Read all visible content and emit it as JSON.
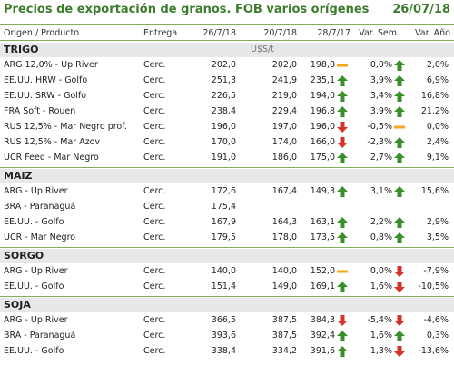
{
  "title": "Precios de exportación de granos. FOB varios orígenes",
  "date": "26/07/18",
  "headers": {
    "producto": "Origen / Producto",
    "entrega": "Entrega",
    "d1": "26/7/18",
    "d2": "20/7/18",
    "d3": "28/7/17",
    "var_sem": "Var. Sem.",
    "var_anio": "Var. Año"
  },
  "unit": "U$S/t",
  "colors": {
    "up": "#3a8f2a",
    "down": "#d6332a",
    "flat": "#f2a81d",
    "accent": "#3b7d2a"
  },
  "sections": [
    {
      "name": "TRIGO",
      "rows": [
        {
          "p": "ARG 12,0% - Up River",
          "e": "Cerc.",
          "d1": "202,0",
          "d2": "202,0",
          "d3": "198,0",
          "i1": "flat",
          "vs": "0,0%",
          "i2": "up",
          "va": "2,0%"
        },
        {
          "p": "EE.UU. HRW - Golfo",
          "e": "Cerc.",
          "d1": "251,3",
          "d2": "241,9",
          "d3": "235,1",
          "i1": "up",
          "vs": "3,9%",
          "i2": "up",
          "va": "6,9%"
        },
        {
          "p": "EE.UU. SRW - Golfo",
          "e": "Cerc.",
          "d1": "226,5",
          "d2": "219,0",
          "d3": "194,0",
          "i1": "up",
          "vs": "3,4%",
          "i2": "up",
          "va": "16,8%"
        },
        {
          "p": "FRA Soft - Rouen",
          "e": "Cerc.",
          "d1": "238,4",
          "d2": "229,4",
          "d3": "196,8",
          "i1": "up",
          "vs": "3,9%",
          "i2": "up",
          "va": "21,2%"
        },
        {
          "p": "RUS 12,5% - Mar Negro prof.",
          "e": "Cerc.",
          "d1": "196,0",
          "d2": "197,0",
          "d3": "196,0",
          "i1": "down",
          "vs": "-0,5%",
          "i2": "flat",
          "va": "0,0%"
        },
        {
          "p": "RUS 12,5% - Mar Azov",
          "e": "Cerc.",
          "d1": "170,0",
          "d2": "174,0",
          "d3": "166,0",
          "i1": "down",
          "vs": "-2,3%",
          "i2": "up",
          "va": "2,4%"
        },
        {
          "p": "UCR Feed - Mar Negro",
          "e": "Cerc.",
          "d1": "191,0",
          "d2": "186,0",
          "d3": "175,0",
          "i1": "up",
          "vs": "2,7%",
          "i2": "up",
          "va": "9,1%"
        }
      ]
    },
    {
      "name": "MAIZ",
      "rows": [
        {
          "p": "ARG - Up River",
          "e": "Cerc.",
          "d1": "172,6",
          "d2": "167,4",
          "d3": "149,3",
          "i1": "up",
          "vs": "3,1%",
          "i2": "up",
          "va": "15,6%"
        },
        {
          "p": "BRA - Paranaguá",
          "e": "Cerc.",
          "d1": "175,4",
          "d2": "",
          "d3": "",
          "i1": "",
          "vs": "",
          "i2": "",
          "va": ""
        },
        {
          "p": "EE.UU. - Golfo",
          "e": "Cerc.",
          "d1": "167,9",
          "d2": "164,3",
          "d3": "163,1",
          "i1": "up",
          "vs": "2,2%",
          "i2": "up",
          "va": "2,9%"
        },
        {
          "p": "UCR - Mar Negro",
          "e": "Cerc.",
          "d1": "179,5",
          "d2": "178,0",
          "d3": "173,5",
          "i1": "up",
          "vs": "0,8%",
          "i2": "up",
          "va": "3,5%"
        }
      ]
    },
    {
      "name": "SORGO",
      "rows": [
        {
          "p": "ARG - Up River",
          "e": "Cerc.",
          "d1": "140,0",
          "d2": "140,0",
          "d3": "152,0",
          "i1": "flat",
          "vs": "0,0%",
          "i2": "down",
          "va": "-7,9%"
        },
        {
          "p": "EE.UU. - Golfo",
          "e": "Cerc.",
          "d1": "151,4",
          "d2": "149,0",
          "d3": "169,1",
          "i1": "up",
          "vs": "1,6%",
          "i2": "down",
          "va": "-10,5%"
        }
      ]
    },
    {
      "name": "SOJA",
      "rows": [
        {
          "p": "ARG - Up River",
          "e": "Cerc.",
          "d1": "366,5",
          "d2": "387,5",
          "d3": "384,3",
          "i1": "down",
          "vs": "-5,4%",
          "i2": "down",
          "va": "-4,6%"
        },
        {
          "p": "BRA - Paranaguá",
          "e": "Cerc.",
          "d1": "393,6",
          "d2": "387,5",
          "d3": "392,4",
          "i1": "up",
          "vs": "1,6%",
          "i2": "up",
          "va": "0,3%"
        },
        {
          "p": "EE.UU. - Golfo",
          "e": "Cerc.",
          "d1": "338,4",
          "d2": "334,2",
          "d3": "391,6",
          "i1": "up",
          "vs": "1,3%",
          "i2": "down",
          "va": "-13,6%"
        }
      ]
    }
  ]
}
